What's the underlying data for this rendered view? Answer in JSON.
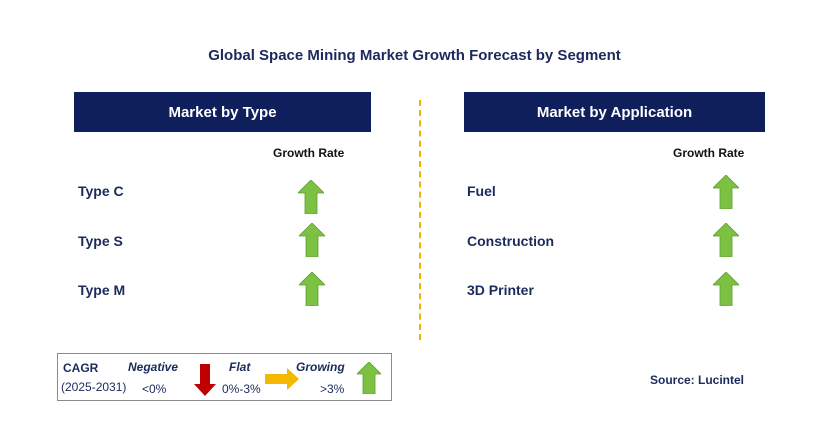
{
  "title": "Global Space Mining Market Growth Forecast by Segment",
  "left_panel": {
    "header": "Market by Type",
    "column_header": "Growth Rate",
    "rows": [
      {
        "label": "Type C",
        "trend": "growing"
      },
      {
        "label": "Type S",
        "trend": "growing"
      },
      {
        "label": "Type M",
        "trend": "growing"
      }
    ]
  },
  "right_panel": {
    "header": "Market by Application",
    "column_header": "Growth Rate",
    "rows": [
      {
        "label": "Fuel",
        "trend": "growing"
      },
      {
        "label": "Construction",
        "trend": "growing"
      },
      {
        "label": "3D Printer",
        "trend": "growing"
      }
    ]
  },
  "legend": {
    "cagr_label": "CAGR",
    "period": "(2025-2031)",
    "negative_label": "Negative",
    "negative_range": "<0%",
    "flat_label": "Flat",
    "flat_range": "0%-3%",
    "growing_label": "Growing",
    "growing_range": ">3%"
  },
  "source": "Source: Lucintel",
  "colors": {
    "header_bg": "#0f1f5c",
    "growing": "#7dc142",
    "flat": "#f5b800",
    "negative": "#c00000",
    "divider": "#f0b400"
  }
}
